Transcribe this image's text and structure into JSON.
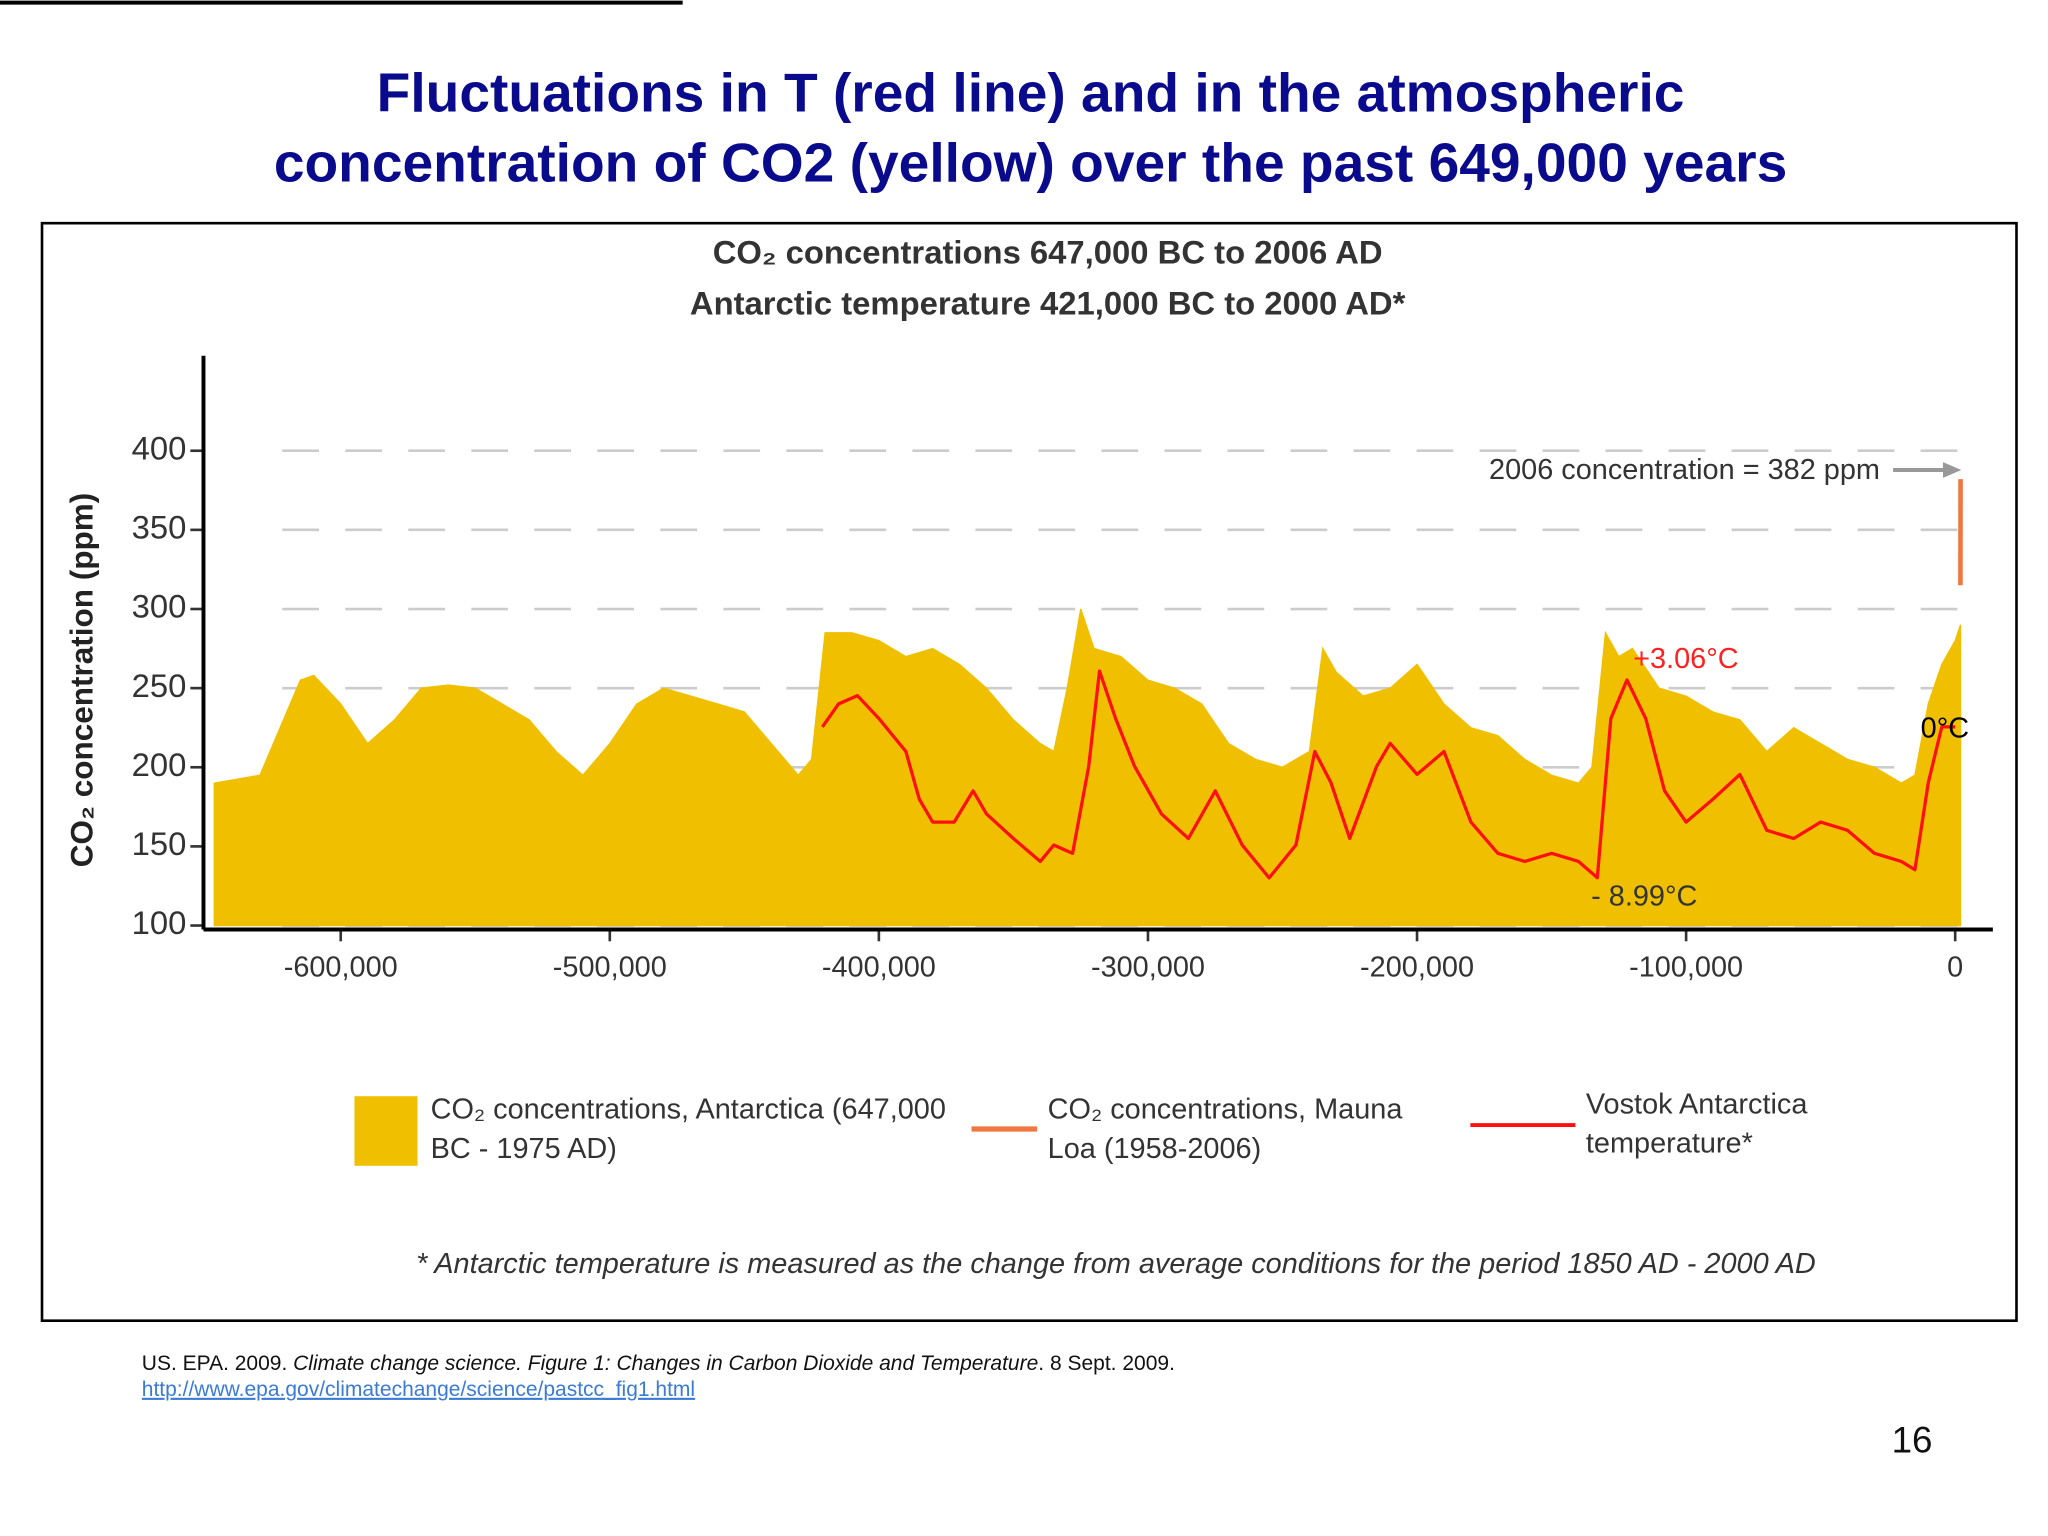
{
  "slide": {
    "title": [
      "Fluctuations in T (red line) and in the atmospheric",
      "concentration of CO2 (yellow) over the past 649,000 years"
    ],
    "citation": {
      "text": "US. EPA. 2009. ",
      "italic": "Climate change science. Figure 1: Changes in Carbon Dioxide and Temperature",
      "tail": ". 8 Sept. 2009.",
      "link": "http://www.epa.gov/climatechange/science/pastcc_fig1.html"
    },
    "page_number": "16"
  },
  "chart_data": {
    "type": "area",
    "title": [
      "CO₂ concentrations 647,000 BC to 2006 AD",
      "Antarctic temperature 421,000 BC to 2000 AD*"
    ],
    "ylabel": "CO₂ concentration (ppm)",
    "footnote": "* Antarctic temperature is measured as the change from average conditions for the period 1850 AD - 2000 AD",
    "annotations": [
      "2006 concentration = 382 ppm",
      "+3.06°C",
      "- 8.99°C",
      "0°C"
    ],
    "xlim": [
      -651000,
      14000
    ],
    "xticks": [
      {
        "value": -600000,
        "label": "-600,000"
      },
      {
        "value": -500000,
        "label": "-500,000"
      },
      {
        "value": -400000,
        "label": "-400,000"
      },
      {
        "value": -300000,
        "label": "-300,000"
      },
      {
        "value": -200000,
        "label": "-200,000"
      },
      {
        "value": -100000,
        "label": "-100,000"
      },
      0
    ],
    "ylim": [
      100,
      460
    ],
    "yticks": [
      100,
      150,
      200,
      250,
      300,
      350,
      400
    ],
    "y2lim": [
      -11.9,
      22.8
    ],
    "grid": true,
    "series": [
      {
        "name": "CO₂ concentrations, Antarctica (647,000 BC - 1975 AD)",
        "type": "area",
        "color": "#f0c000",
        "x": [
          -647000,
          -640000,
          -630000,
          -620000,
          -615000,
          -610000,
          -600000,
          -590000,
          -580000,
          -570000,
          -560000,
          -550000,
          -540000,
          -530000,
          -520000,
          -510000,
          -500000,
          -490000,
          -480000,
          -470000,
          -460000,
          -450000,
          -440000,
          -430000,
          -425000,
          -420000,
          -410000,
          -400000,
          -390000,
          -380000,
          -370000,
          -360000,
          -350000,
          -340000,
          -335000,
          -330000,
          -325000,
          -320000,
          -310000,
          -300000,
          -290000,
          -280000,
          -270000,
          -260000,
          -250000,
          -240000,
          -235000,
          -230000,
          -220000,
          -210000,
          -200000,
          -190000,
          -180000,
          -170000,
          -160000,
          -150000,
          -140000,
          -135000,
          -130000,
          -125000,
          -120000,
          -110000,
          -100000,
          -90000,
          -80000,
          -70000,
          -60000,
          -50000,
          -40000,
          -30000,
          -20000,
          -15000,
          -10000,
          -5000,
          0,
          1975
        ],
        "values": [
          190,
          192,
          195,
          235,
          255,
          258,
          240,
          215,
          230,
          250,
          252,
          250,
          240,
          230,
          210,
          195,
          215,
          240,
          250,
          245,
          240,
          235,
          215,
          195,
          205,
          285,
          285,
          280,
          270,
          275,
          265,
          250,
          230,
          215,
          210,
          250,
          300,
          275,
          270,
          255,
          250,
          240,
          215,
          205,
          200,
          210,
          275,
          260,
          245,
          250,
          265,
          240,
          225,
          220,
          205,
          195,
          190,
          200,
          285,
          270,
          275,
          250,
          245,
          235,
          230,
          210,
          225,
          215,
          205,
          200,
          190,
          195,
          240,
          265,
          280,
          290
        ]
      },
      {
        "name": "CO₂ concentrations, Mauna Loa (1958-2006)",
        "type": "line",
        "color": "#f07840",
        "x": [
          1958,
          2006
        ],
        "values": [
          315,
          382
        ]
      },
      {
        "name": "Vostok Antarctica temperature*",
        "type": "line",
        "color": "#ff1010",
        "axis": "y2",
        "x": [
          -421000,
          -415000,
          -408000,
          -400000,
          -390000,
          -385000,
          -380000,
          -372000,
          -365000,
          -360000,
          -350000,
          -340000,
          -335000,
          -328000,
          -322000,
          -318000,
          -312000,
          -305000,
          -295000,
          -285000,
          -275000,
          -265000,
          -255000,
          -245000,
          -238000,
          -232000,
          -225000,
          -215000,
          -210000,
          -200000,
          -190000,
          -180000,
          -170000,
          -160000,
          -150000,
          -140000,
          -133000,
          -128000,
          -122000,
          -115000,
          -108000,
          -100000,
          -90000,
          -80000,
          -70000,
          -60000,
          -50000,
          -40000,
          -30000,
          -20000,
          -15000,
          -10000,
          -5000,
          0
        ],
        "values": [
          0.2,
          1.6,
          2.1,
          0.7,
          -1.3,
          -4.2,
          -5.6,
          -5.6,
          -3.7,
          -5.1,
          -6.6,
          -8.0,
          -7.0,
          -7.5,
          -2.2,
          3.6,
          0.7,
          -2.2,
          -5.1,
          -6.6,
          -3.7,
          -7.0,
          -9.0,
          -7.0,
          -1.3,
          -3.2,
          -6.6,
          -2.2,
          -0.8,
          -2.7,
          -1.3,
          -5.6,
          -7.5,
          -8.0,
          -7.5,
          -8.0,
          -8.99,
          0.7,
          3.06,
          0.7,
          -3.7,
          -5.6,
          -4.2,
          -2.7,
          -6.1,
          -6.6,
          -5.6,
          -6.1,
          -7.5,
          -8.0,
          -8.5,
          -3.2,
          0.2,
          0.2
        ]
      }
    ]
  }
}
